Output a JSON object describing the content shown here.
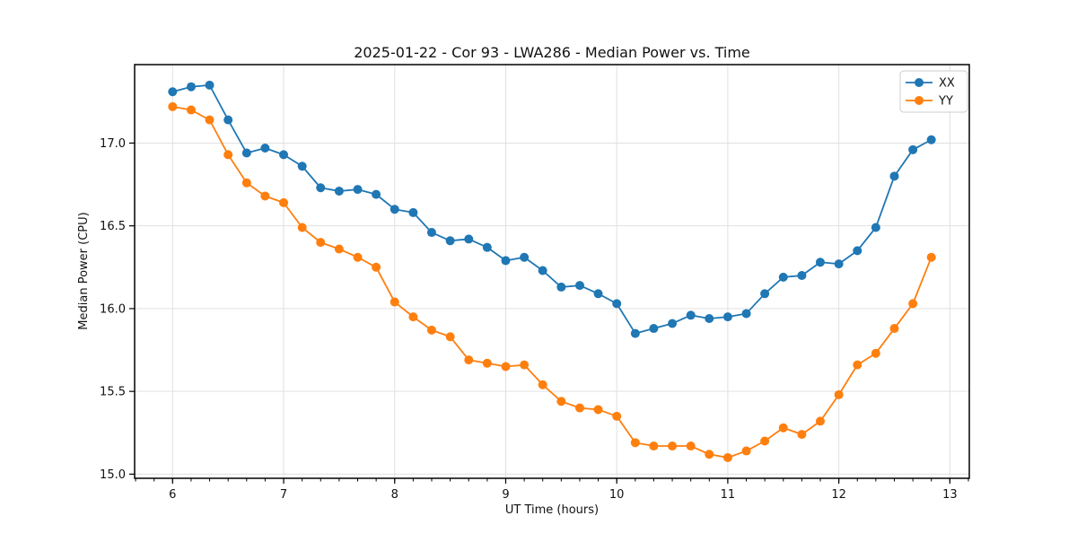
{
  "figure": {
    "background": "#ffffff"
  },
  "chart_data": {
    "type": "line",
    "title": "2025-01-22 - Cor 93 - LWA286 - Median Power vs. Time",
    "xlabel": "UT Time (hours)",
    "ylabel": "Median Power (CPU)",
    "xlim": [
      5.658,
      13.175
    ],
    "ylim": [
      14.975,
      17.474
    ],
    "xticks": [
      6,
      7,
      8,
      9,
      10,
      11,
      12,
      13
    ],
    "yticks": [
      15.0,
      15.5,
      16.0,
      16.5,
      17.0
    ],
    "ytick_labels": [
      "15.0",
      "15.5",
      "16.0",
      "16.5",
      "17.0"
    ],
    "minor_tick_step_x": 0.166667,
    "grid": true,
    "grid_color": "#e0e0e0",
    "spine_color": "#000000",
    "legend": {
      "position": "upper right",
      "entries": [
        "XX",
        "YY"
      ]
    },
    "marker": "circle",
    "marker_size": 5,
    "line_width": 1.8,
    "x": [
      6.0,
      6.167,
      6.333,
      6.5,
      6.667,
      6.833,
      7.0,
      7.167,
      7.333,
      7.5,
      7.667,
      7.833,
      8.0,
      8.167,
      8.333,
      8.5,
      8.667,
      8.833,
      9.0,
      9.167,
      9.333,
      9.5,
      9.667,
      9.833,
      10.0,
      10.167,
      10.333,
      10.5,
      10.667,
      10.833,
      11.0,
      11.167,
      11.333,
      11.5,
      11.667,
      11.833,
      12.0,
      12.167,
      12.333,
      12.5,
      12.667,
      12.833
    ],
    "series": [
      {
        "name": "XX",
        "color": "#1f77b4",
        "values": [
          17.31,
          17.34,
          17.35,
          17.14,
          16.94,
          16.97,
          16.93,
          16.86,
          16.73,
          16.71,
          16.72,
          16.69,
          16.6,
          16.58,
          16.46,
          16.41,
          16.42,
          16.37,
          16.29,
          16.31,
          16.23,
          16.13,
          16.14,
          16.09,
          16.03,
          15.85,
          15.88,
          15.91,
          15.96,
          15.94,
          15.95,
          15.97,
          16.09,
          16.19,
          16.2,
          16.28,
          16.27,
          16.35,
          16.49,
          16.8,
          16.96,
          17.02
        ]
      },
      {
        "name": "YY",
        "color": "#ff7f0e",
        "values": [
          17.22,
          17.2,
          17.14,
          16.93,
          16.76,
          16.68,
          16.64,
          16.49,
          16.4,
          16.36,
          16.31,
          16.25,
          16.04,
          15.95,
          15.87,
          15.83,
          15.69,
          15.67,
          15.65,
          15.66,
          15.54,
          15.44,
          15.4,
          15.39,
          15.35,
          15.19,
          15.17,
          15.17,
          15.17,
          15.12,
          15.1,
          15.14,
          15.2,
          15.28,
          15.24,
          15.32,
          15.48,
          15.66,
          15.73,
          15.88,
          16.03,
          16.31
        ]
      }
    ]
  }
}
